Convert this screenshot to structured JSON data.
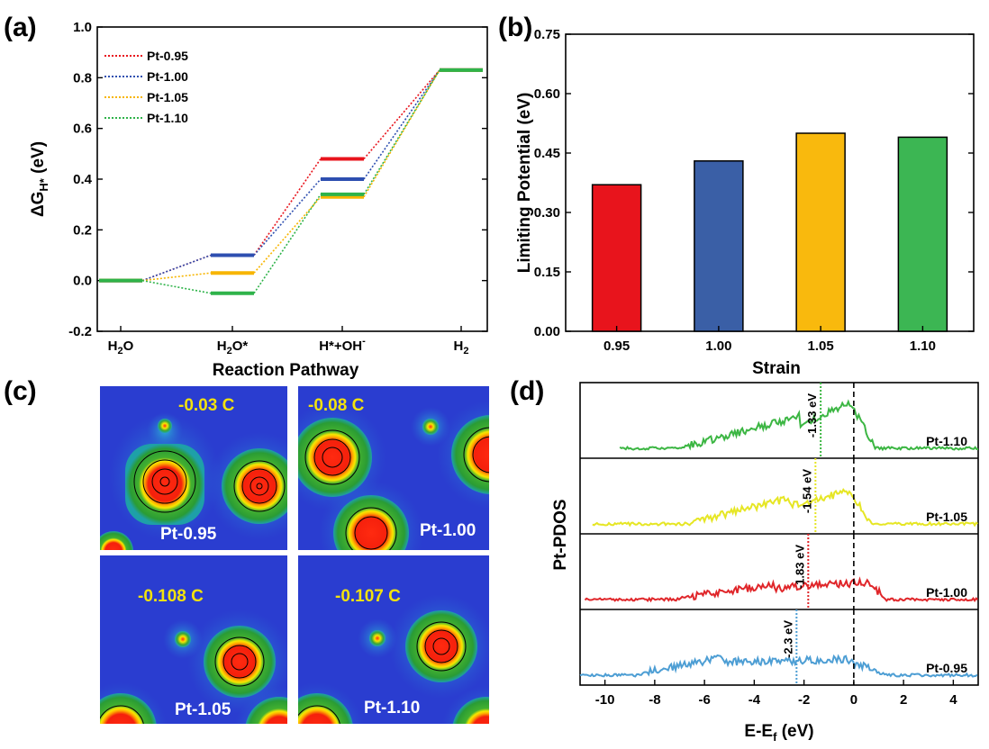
{
  "panel_labels": {
    "a": "(a)",
    "b": "(b)",
    "c": "(c)",
    "d": "(d)"
  },
  "chart_data": [
    {
      "id": "a",
      "type": "line",
      "ylabel": "ΔG",
      "ylabel_sub": "H*",
      "ylabel_unit": " (eV)",
      "xlabel": "Reaction Pathway",
      "ylim": [
        -0.2,
        1.0
      ],
      "yticks": [
        "-0.2",
        "0.0",
        "0.2",
        "0.4",
        "0.6",
        "0.8",
        "1.0"
      ],
      "steps": [
        {
          "base": "H",
          "sub": "2",
          "rest": "O",
          "sup": ""
        },
        {
          "base": "H",
          "sub": "2",
          "rest": "O*",
          "sup": ""
        },
        {
          "base": "H*+OH",
          "sub": "",
          "rest": "",
          "sup": "-"
        },
        {
          "base": "H",
          "sub": "2",
          "rest": "",
          "sup": ""
        }
      ],
      "series": [
        {
          "name": "Pt-0.95",
          "color": "#e8141c",
          "values": [
            0.0,
            0.1,
            0.48,
            0.83
          ]
        },
        {
          "name": "Pt-1.00",
          "color": "#2e4fb0",
          "values": [
            0.0,
            0.1,
            0.4,
            0.83
          ]
        },
        {
          "name": "Pt-1.05",
          "color": "#f7b500",
          "values": [
            0.0,
            0.03,
            0.33,
            0.83
          ]
        },
        {
          "name": "Pt-1.10",
          "color": "#2fb34a",
          "values": [
            0.0,
            -0.05,
            0.34,
            0.83
          ]
        }
      ]
    },
    {
      "id": "b",
      "type": "bar",
      "xlabel": "Strain",
      "ylabel": "Limiting Potential (eV)",
      "ylim": [
        0.0,
        0.75
      ],
      "yticks": [
        "0.00",
        "0.15",
        "0.30",
        "0.45",
        "0.60",
        "0.75"
      ],
      "categories": [
        "0.95",
        "1.00",
        "1.05",
        "1.10"
      ],
      "values": [
        0.37,
        0.43,
        0.5,
        0.49
      ],
      "colors": [
        "#e8141c",
        "#3a5fa6",
        "#f9b90d",
        "#3cb653"
      ]
    },
    {
      "id": "d",
      "type": "line",
      "xlabel": "E-E",
      "xlabel_sub": "f",
      "xlabel_unit": " (eV)",
      "ylabel": "Pt-PDOS",
      "xlim": [
        -11,
        5
      ],
      "xticks": [
        "-10",
        "-8",
        "-6",
        "-4",
        "-2",
        "0",
        "2",
        "4"
      ],
      "fermi_level": 0,
      "series": [
        {
          "name": "Pt-1.10",
          "color": "#3cb643",
          "d_band_center": -1.33,
          "d_band_label": "-1.33 eV"
        },
        {
          "name": "Pt-1.05",
          "color": "#e6e624",
          "d_band_center": -1.54,
          "d_band_label": "-1.54 eV"
        },
        {
          "name": "Pt-1.00",
          "color": "#e0262a",
          "d_band_center": -1.83,
          "d_band_label": "-1.83 eV"
        },
        {
          "name": "Pt-0.95",
          "color": "#4d9ed4",
          "d_band_center": -2.3,
          "d_band_label": "-2.3 eV"
        }
      ]
    }
  ],
  "panel_c": {
    "maps": [
      {
        "name": "Pt-0.95",
        "charge": "-0.03 C"
      },
      {
        "name": "Pt-1.00",
        "charge": "-0.08 C"
      },
      {
        "name": "Pt-1.05",
        "charge": "-0.108 C"
      },
      {
        "name": "Pt-1.10",
        "charge": "-0.107 C"
      }
    ]
  }
}
